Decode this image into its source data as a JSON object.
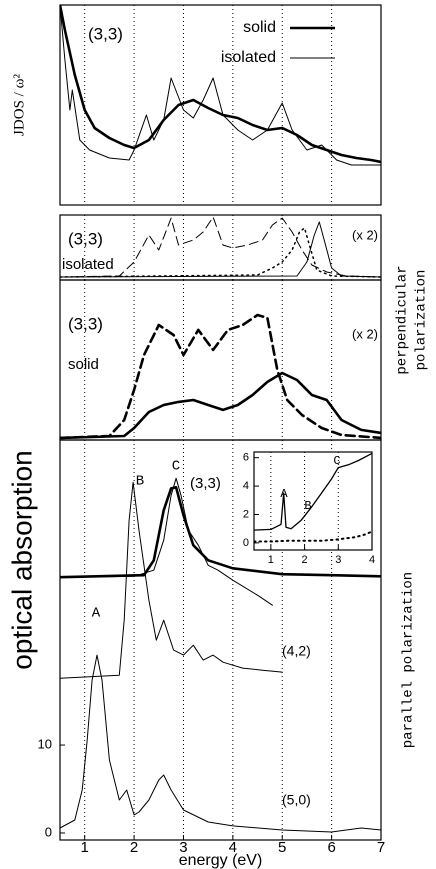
{
  "figure": {
    "y_label": "JDOS / ω²",
    "main_label": "optical absorption",
    "right_labels": [
      "perpendicular",
      "polarization"
    ],
    "right_labels_2": [
      "parallel polarization"
    ]
  },
  "chart_data": [
    {
      "type": "line",
      "xlim": [
        0.5,
        7
      ],
      "ylim": [
        0,
        10
      ],
      "vlines": [
        1,
        2,
        3,
        4,
        5,
        6
      ],
      "legend": "top-right",
      "annotations": [
        "(3,3)"
      ],
      "series": [
        {
          "name": "solid",
          "color": "#000000",
          "width": 2.6,
          "style": "solid",
          "x": [
            0.5,
            0.6,
            0.8,
            1.0,
            1.2,
            1.5,
            1.8,
            2.0,
            2.3,
            2.6,
            2.9,
            3.2,
            3.5,
            3.8,
            4.1,
            4.4,
            4.7,
            5.0,
            5.3,
            5.6,
            5.9,
            6.2,
            6.5,
            6.8,
            7.0
          ],
          "values": [
            10,
            8.75,
            6.5,
            4.75,
            3.85,
            3.35,
            3,
            2.85,
            3.25,
            4.25,
            5,
            5.25,
            4.85,
            4.5,
            4.35,
            4,
            3.75,
            3.85,
            3.5,
            3,
            2.75,
            2.5,
            2.35,
            2.25,
            2.15
          ]
        },
        {
          "name": "isolated",
          "color": "#000000",
          "width": 1,
          "style": "solid",
          "x": [
            0.5,
            0.6,
            0.7,
            0.75,
            0.9,
            1.1,
            1.5,
            1.9,
            2.0,
            2.25,
            2.4,
            2.6,
            2.75,
            3.0,
            3.2,
            3.4,
            3.6,
            3.8,
            4.1,
            4.4,
            4.7,
            5.0,
            5.2,
            5.5,
            5.8,
            6.1,
            6.4,
            7.0
          ],
          "values": [
            10,
            7.25,
            4.75,
            5.75,
            3.25,
            2.75,
            2.35,
            2.25,
            2.75,
            4.5,
            3.25,
            4.25,
            6.35,
            4.75,
            4.35,
            5.25,
            6.35,
            4.5,
            3.75,
            3.25,
            3.75,
            5.1,
            3.75,
            2.75,
            3,
            2.25,
            2,
            2
          ]
        }
      ]
    },
    {
      "type": "line",
      "xlim": [
        0.5,
        7
      ],
      "ylim": [
        0,
        10
      ],
      "vlines": [
        1,
        2,
        3,
        4,
        5,
        6
      ],
      "annotations": [
        "(3,3)",
        "isolated",
        "(x 2)"
      ],
      "series": [
        {
          "color": "#000000",
          "width": 1,
          "style": "dashed",
          "x": [
            0.5,
            1.7,
            2.0,
            2.3,
            2.5,
            2.75,
            2.9,
            3.2,
            3.4,
            3.6,
            3.8,
            4.0,
            4.3,
            4.6,
            4.8,
            5.0,
            5.2,
            5.4,
            5.6,
            5.9,
            6.3,
            7.0
          ],
          "values": [
            0.46,
            0.62,
            2.77,
            6.92,
            4.62,
            9.54,
            5.38,
            6.15,
            7.38,
            9.69,
            5.38,
            4.92,
            5.38,
            6.15,
            8.46,
            9.54,
            7.38,
            4.62,
            2.31,
            1.23,
            0.62,
            0.46
          ]
        },
        {
          "color": "#000000",
          "width": 1.5,
          "style": "dotted",
          "x": [
            0.5,
            4.5,
            4.8,
            5.0,
            5.2,
            5.35,
            5.45,
            5.55,
            5.7,
            6.0,
            7.0
          ],
          "values": [
            0.46,
            0.77,
            1.85,
            2.77,
            4.62,
            7.38,
            8,
            5.38,
            1.54,
            0.62,
            0.46
          ]
        },
        {
          "color": "#000000",
          "width": 1,
          "style": "solid",
          "x": [
            0.5,
            5.3,
            5.5,
            5.65,
            5.75,
            5.85,
            6.0,
            6.2,
            7.0
          ],
          "values": [
            0.46,
            0.62,
            2.77,
            6.92,
            8.92,
            6.15,
            1.85,
            0.62,
            0.46
          ]
        }
      ]
    },
    {
      "type": "line",
      "xlim": [
        0.5,
        7
      ],
      "ylim": [
        0,
        10
      ],
      "vlines": [
        1,
        2,
        3,
        4,
        5,
        6
      ],
      "annotations": [
        "(3,3)",
        "solid",
        "(x 2)"
      ],
      "series": [
        {
          "color": "#000000",
          "width": 2.6,
          "style": "dashed",
          "x": [
            0.5,
            1.5,
            1.8,
            2.0,
            2.2,
            2.5,
            2.8,
            3.0,
            3.3,
            3.6,
            3.9,
            4.2,
            4.5,
            4.7,
            4.9,
            5.1,
            5.4,
            5.8,
            6.2,
            7.0
          ],
          "values": [
            0.13,
            0.25,
            1.25,
            3.13,
            5.31,
            7.19,
            6.56,
            5.31,
            6.88,
            5.63,
            6.88,
            7.19,
            7.81,
            7.63,
            4.38,
            2.5,
            1.56,
            0.75,
            0.31,
            0.13
          ]
        },
        {
          "color": "#000000",
          "width": 2.6,
          "style": "solid",
          "x": [
            0.5,
            1.8,
            2.0,
            2.3,
            2.6,
            2.9,
            3.2,
            3.5,
            3.8,
            4.1,
            4.4,
            4.7,
            5.0,
            5.3,
            5.6,
            5.9,
            6.2,
            6.6,
            7.0
          ],
          "values": [
            0.13,
            0.25,
            0.75,
            1.75,
            2.19,
            2.38,
            2.5,
            2.19,
            1.88,
            2.19,
            2.81,
            3.63,
            4.19,
            3.75,
            2.81,
            2.5,
            1.25,
            0.63,
            0.44
          ]
        }
      ]
    },
    {
      "type": "line",
      "xlim": [
        0.5,
        7
      ],
      "ylim": [
        -0.8,
        44.7
      ],
      "xticks": [
        1,
        2,
        3,
        4,
        5,
        6,
        7
      ],
      "yticks": [
        0,
        10
      ],
      "x_label": "energy (eV)",
      "annotations": [
        "A",
        "B",
        "C",
        "(3,3)",
        "(4,2)",
        "(5,0)"
      ],
      "series": [
        {
          "color": "#000000",
          "width": 1,
          "style": "solid",
          "x": [
            0.5,
            0.8,
            0.95,
            1.05,
            1.15,
            1.25,
            1.35,
            1.5,
            1.7,
            1.85,
            2.0,
            2.1,
            2.3,
            2.5,
            2.6,
            2.75,
            3.0,
            3.5,
            4.0,
            5.0,
            6.0,
            6.6,
            7.0
          ],
          "values": [
            0.57,
            1.48,
            4.89,
            10.57,
            17.39,
            20.23,
            17.39,
            8.3,
            3.75,
            4.89,
            2.05,
            2.39,
            3.75,
            6.02,
            6.59,
            4.89,
            2.61,
            1.25,
            0.8,
            0.34,
            0.11,
            0.57,
            0.34
          ]
        },
        {
          "color": "#000000",
          "width": 1,
          "style": "solid",
          "x": [
            0.5,
            1.7,
            1.8,
            1.9,
            1.98,
            2.1,
            2.3,
            2.45,
            2.6,
            2.8,
            3.0,
            3.2,
            3.4,
            3.6,
            3.8,
            4.2,
            4.6,
            5.0
          ],
          "values": [
            17.61,
            17.95,
            24.2,
            35.57,
            39.89,
            34.43,
            26.48,
            21.93,
            24.2,
            20.8,
            20.23,
            21.36,
            19.66,
            20.23,
            19.43,
            18.75,
            18.52,
            18.3
          ]
        },
        {
          "color": "#000000",
          "width": 1,
          "style": "solid",
          "x": [
            0.5,
            2.0,
            2.4,
            2.6,
            2.75,
            2.85,
            2.95,
            3.1,
            3.3,
            3.5,
            3.7,
            4.0,
            4.5,
            4.8
          ],
          "values": [
            29.09,
            29.2,
            29.89,
            33.3,
            38.41,
            40.34,
            38.41,
            34.43,
            32.73,
            30.45,
            29.89,
            28.75,
            27.05,
            25.91
          ]
        },
        {
          "color": "#000000",
          "width": 2.6,
          "style": "solid",
          "x": [
            0.5,
            2.2,
            2.4,
            2.6,
            2.75,
            2.85,
            3.0,
            3.2,
            3.5,
            4.0,
            5.0,
            6.0,
            7.0
          ],
          "values": [
            29.09,
            29.32,
            31.02,
            36.7,
            39.2,
            39.32,
            36.14,
            32.73,
            31.02,
            30.11,
            29.43,
            29.32,
            29.2
          ]
        }
      ]
    },
    {
      "type": "line",
      "xlim": [
        0.5,
        4
      ],
      "ylim": [
        -0.5,
        6.4
      ],
      "xticks": [
        1,
        2,
        3,
        4
      ],
      "yticks": [
        0,
        2,
        4,
        6
      ],
      "annotations": [
        "A",
        "B",
        "C"
      ],
      "series": [
        {
          "color": "#000000",
          "width": 1.3,
          "style": "solid",
          "x": [
            0.5,
            1.0,
            1.3,
            1.38,
            1.45,
            1.6,
            1.9,
            2.2,
            2.5,
            2.8,
            3.0,
            3.3,
            3.6,
            4.0
          ],
          "values": [
            0.9,
            0.95,
            1.3,
            3.5,
            1.1,
            1,
            1.6,
            2.5,
            3.5,
            4.5,
            5.3,
            5.5,
            5.8,
            6.3
          ]
        },
        {
          "color": "#000000",
          "width": 2,
          "style": "dotted",
          "x": [
            0.5,
            1,
            1.5,
            2,
            2.5,
            3,
            3.5,
            3.8,
            4
          ],
          "values": [
            0.1,
            0.1,
            0.15,
            0.15,
            0.15,
            0.25,
            0.4,
            0.6,
            0.8
          ]
        }
      ]
    }
  ]
}
